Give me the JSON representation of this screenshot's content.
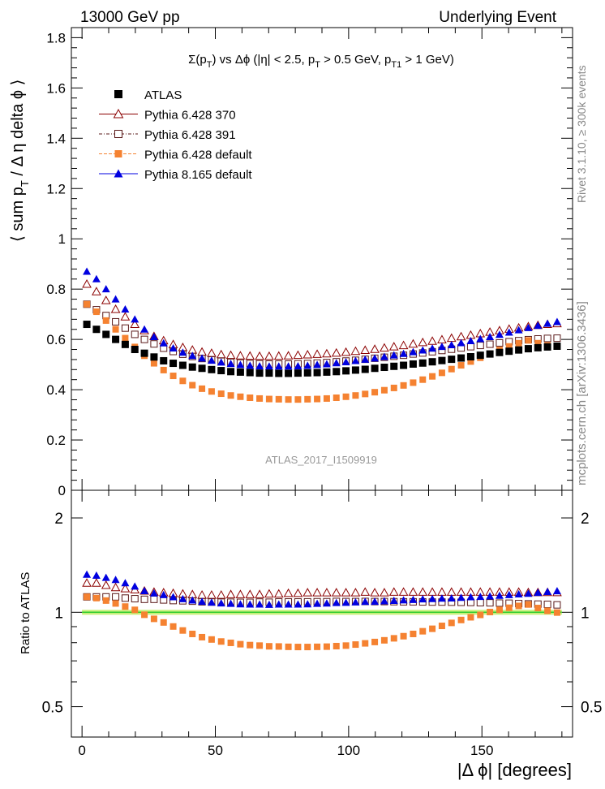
{
  "header": {
    "left": "13000 GeV pp",
    "right": "Underlying Event"
  },
  "side_labels": {
    "rivet_a": "Rivet 3.1.10, ",
    "rivet_geq": "≥",
    "rivet_b": " 300k events",
    "mcplots": "mcplots.cern.ch [arXiv:1306.3436]"
  },
  "analysis_id": "ATLAS_2017_I1509919",
  "plot_title": {
    "sigma": "Σ(p",
    "t_sub": "T",
    "vs": ") vs Δϕ (|η| < 2.5, p",
    "t_sub2": "T",
    "mid": " > 0.5 GeV, p",
    "t1_sub": "T1",
    "end": " > 1 GeV)"
  },
  "y_label_main": {
    "open": "⟨ sum p",
    "sub": "T",
    "rest": " / Δ η delta ϕ ⟩"
  },
  "y_label_ratio": "Ratio to ATLAS",
  "x_label": "|Δ ϕ| [degrees]",
  "colors": {
    "atlas": "#000000",
    "p6_370": "#8b0000",
    "p6_391": "#5a1a1a",
    "p6_default": "#f58231",
    "p8_default": "#0000e0",
    "ref_band": "#c8f07a",
    "ref_line": "#32cd32"
  },
  "chart_data": [
    {
      "type": "scatter",
      "panel": "main",
      "title": "Σ(pT) vs Δϕ (|η| < 2.5, pT > 0.5 GeV, pT1 > 1 GeV)",
      "xlabel": "|Δ ϕ| [degrees]",
      "ylabel": "⟨ sum pT / Δ η delta ϕ ⟩",
      "xlim": [
        -4,
        184
      ],
      "ylim": [
        0,
        1.84
      ],
      "x_ticks": [
        0,
        50,
        100,
        150
      ],
      "y_ticks": [
        0,
        0.2,
        0.4,
        0.6,
        0.8,
        1,
        1.2,
        1.4,
        1.6,
        1.8
      ],
      "y_tick_labels": [
        "0",
        "0.2",
        "0.4",
        "0.6",
        "0.8",
        "1",
        "1.2",
        "1.4",
        "1.6",
        "1.8"
      ],
      "x": [
        1.8,
        5.4,
        9,
        12.6,
        16.2,
        19.8,
        23.4,
        27,
        30.6,
        34.2,
        37.8,
        41.4,
        45,
        48.6,
        52.2,
        55.8,
        59.4,
        63,
        66.6,
        70.2,
        73.8,
        77.4,
        81,
        84.6,
        88.2,
        91.8,
        95.4,
        99,
        102.6,
        106.2,
        109.8,
        113.4,
        117,
        120.6,
        124.2,
        127.8,
        131.4,
        135,
        138.6,
        142.2,
        145.8,
        149.4,
        153,
        156.6,
        160.2,
        163.8,
        167.4,
        171,
        174.6,
        178.2
      ],
      "series": [
        {
          "name": "ATLAS",
          "marker": "filled-square",
          "color_key": "atlas",
          "values": [
            0.66,
            0.64,
            0.62,
            0.6,
            0.58,
            0.56,
            0.545,
            0.53,
            0.515,
            0.505,
            0.497,
            0.49,
            0.485,
            0.48,
            0.476,
            0.472,
            0.47,
            0.468,
            0.466,
            0.466,
            0.465,
            0.465,
            0.466,
            0.467,
            0.468,
            0.47,
            0.472,
            0.475,
            0.478,
            0.481,
            0.485,
            0.489,
            0.493,
            0.497,
            0.502,
            0.506,
            0.511,
            0.516,
            0.521,
            0.526,
            0.531,
            0.537,
            0.542,
            0.548,
            0.553,
            0.558,
            0.563,
            0.567,
            0.57,
            0.573
          ]
        },
        {
          "name": "Pythia 6.428 370",
          "marker": "open-triangle",
          "color_key": "p6_370",
          "values": [
            0.82,
            0.79,
            0.755,
            0.72,
            0.69,
            0.66,
            0.635,
            0.612,
            0.595,
            0.58,
            0.568,
            0.558,
            0.55,
            0.545,
            0.54,
            0.537,
            0.535,
            0.534,
            0.533,
            0.533,
            0.534,
            0.535,
            0.537,
            0.539,
            0.541,
            0.543,
            0.546,
            0.549,
            0.553,
            0.557,
            0.561,
            0.566,
            0.571,
            0.576,
            0.582,
            0.588,
            0.593,
            0.599,
            0.605,
            0.611,
            0.617,
            0.623,
            0.629,
            0.635,
            0.641,
            0.646,
            0.651,
            0.656,
            0.66,
            0.663
          ]
        },
        {
          "name": "Pythia 6.428 391",
          "marker": "open-square",
          "color_key": "p6_391",
          "values": [
            0.74,
            0.718,
            0.695,
            0.67,
            0.645,
            0.62,
            0.6,
            0.582,
            0.565,
            0.552,
            0.541,
            0.532,
            0.524,
            0.518,
            0.513,
            0.509,
            0.506,
            0.504,
            0.503,
            0.502,
            0.502,
            0.502,
            0.503,
            0.504,
            0.506,
            0.508,
            0.511,
            0.514,
            0.517,
            0.521,
            0.525,
            0.529,
            0.533,
            0.537,
            0.542,
            0.546,
            0.551,
            0.556,
            0.561,
            0.566,
            0.571,
            0.576,
            0.581,
            0.586,
            0.591,
            0.595,
            0.599,
            0.602,
            0.604,
            0.605
          ]
        },
        {
          "name": "Pythia 6.428 default",
          "marker": "filled-square",
          "color_key": "p6_default",
          "values": [
            0.74,
            0.71,
            0.675,
            0.64,
            0.605,
            0.57,
            0.535,
            0.505,
            0.478,
            0.455,
            0.435,
            0.418,
            0.404,
            0.393,
            0.384,
            0.377,
            0.372,
            0.368,
            0.365,
            0.363,
            0.362,
            0.361,
            0.361,
            0.362,
            0.363,
            0.365,
            0.368,
            0.372,
            0.377,
            0.383,
            0.39,
            0.398,
            0.407,
            0.417,
            0.428,
            0.44,
            0.453,
            0.467,
            0.482,
            0.497,
            0.512,
            0.527,
            0.543,
            0.558,
            0.572,
            0.585,
            0.596,
            0.585,
            0.576,
            0.572
          ]
        },
        {
          "name": "Pythia 8.165 default",
          "marker": "filled-triangle",
          "color_key": "p8_default",
          "values": [
            0.87,
            0.84,
            0.8,
            0.76,
            0.72,
            0.68,
            0.64,
            0.61,
            0.585,
            0.565,
            0.548,
            0.535,
            0.525,
            0.516,
            0.509,
            0.503,
            0.499,
            0.496,
            0.494,
            0.493,
            0.493,
            0.493,
            0.494,
            0.496,
            0.499,
            0.502,
            0.506,
            0.51,
            0.515,
            0.52,
            0.525,
            0.531,
            0.537,
            0.543,
            0.55,
            0.557,
            0.564,
            0.571,
            0.578,
            0.586,
            0.594,
            0.602,
            0.61,
            0.619,
            0.628,
            0.637,
            0.646,
            0.655,
            0.663,
            0.67
          ]
        }
      ],
      "legend": [
        "ATLAS",
        "Pythia 6.428 370",
        "Pythia 6.428 391",
        "Pythia 6.428 default",
        "Pythia 8.165 default"
      ],
      "legend_position": "top-left"
    },
    {
      "type": "scatter",
      "panel": "ratio",
      "ylabel": "Ratio to ATLAS",
      "xlabel": "|Δ ϕ| [degrees]",
      "xlim": [
        -4,
        184
      ],
      "ylim": [
        0.4,
        2.45
      ],
      "y_scale": "log",
      "y_ticks": [
        0.5,
        1,
        2
      ],
      "y_tick_labels": [
        "0.5",
        "1",
        "2"
      ],
      "x_ticks": [
        0,
        50,
        100,
        150
      ],
      "x_tick_labels": [
        "0",
        "50",
        "100",
        "150"
      ],
      "reference": 1,
      "series": [
        {
          "name": "Pythia 6.428 370",
          "color_key": "p6_370",
          "values": [
            1.24,
            1.24,
            1.22,
            1.2,
            1.19,
            1.18,
            1.17,
            1.16,
            1.155,
            1.15,
            1.145,
            1.14,
            1.135,
            1.135,
            1.135,
            1.14,
            1.14,
            1.14,
            1.14,
            1.145,
            1.145,
            1.15,
            1.15,
            1.155,
            1.155,
            1.155,
            1.155,
            1.155,
            1.155,
            1.16,
            1.155,
            1.155,
            1.16,
            1.16,
            1.16,
            1.16,
            1.16,
            1.16,
            1.16,
            1.16,
            1.16,
            1.16,
            1.16,
            1.16,
            1.16,
            1.16,
            1.157,
            1.157,
            1.158,
            1.157
          ]
        },
        {
          "name": "Pythia 6.428 391",
          "color_key": "p6_391",
          "values": [
            1.12,
            1.12,
            1.12,
            1.12,
            1.11,
            1.105,
            1.1,
            1.1,
            1.095,
            1.09,
            1.088,
            1.085,
            1.08,
            1.078,
            1.077,
            1.077,
            1.076,
            1.076,
            1.078,
            1.077,
            1.079,
            1.079,
            1.079,
            1.08,
            1.081,
            1.081,
            1.083,
            1.082,
            1.082,
            1.083,
            1.082,
            1.082,
            1.081,
            1.08,
            1.08,
            1.079,
            1.078,
            1.078,
            1.077,
            1.076,
            1.075,
            1.073,
            1.072,
            1.07,
            1.069,
            1.066,
            1.064,
            1.062,
            1.06,
            1.056
          ]
        },
        {
          "name": "Pythia 6.428 default",
          "color_key": "p6_default",
          "values": [
            1.12,
            1.11,
            1.09,
            1.067,
            1.043,
            1.018,
            0.982,
            0.953,
            0.928,
            0.901,
            0.875,
            0.853,
            0.833,
            0.819,
            0.807,
            0.799,
            0.791,
            0.786,
            0.783,
            0.779,
            0.778,
            0.776,
            0.775,
            0.775,
            0.776,
            0.777,
            0.78,
            0.783,
            0.789,
            0.796,
            0.804,
            0.814,
            0.826,
            0.839,
            0.853,
            0.87,
            0.886,
            0.905,
            0.925,
            0.945,
            0.964,
            0.981,
            1.002,
            1.018,
            1.034,
            1.048,
            1.059,
            1.032,
            1.011,
            0.998
          ]
        },
        {
          "name": "Pythia 8.165 default",
          "color_key": "p8_default",
          "values": [
            1.32,
            1.31,
            1.29,
            1.27,
            1.24,
            1.21,
            1.17,
            1.15,
            1.136,
            1.119,
            1.103,
            1.092,
            1.082,
            1.075,
            1.069,
            1.066,
            1.062,
            1.06,
            1.06,
            1.058,
            1.06,
            1.06,
            1.06,
            1.062,
            1.066,
            1.068,
            1.072,
            1.074,
            1.077,
            1.081,
            1.082,
            1.086,
            1.089,
            1.093,
            1.096,
            1.101,
            1.104,
            1.107,
            1.109,
            1.114,
            1.119,
            1.121,
            1.125,
            1.13,
            1.136,
            1.142,
            1.147,
            1.155,
            1.163,
            1.169
          ]
        }
      ]
    }
  ]
}
